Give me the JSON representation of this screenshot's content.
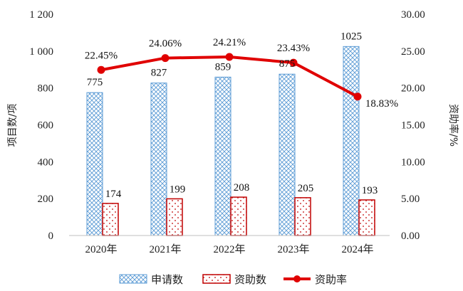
{
  "chart_data": {
    "type": "bar",
    "categories": [
      "2020年",
      "2021年",
      "2022年",
      "2023年",
      "2024年"
    ],
    "series": [
      {
        "name": "申请数",
        "kind": "bar",
        "axis": "left",
        "values": [
          775,
          827,
          859,
          875,
          1025
        ],
        "labels": [
          "775",
          "827",
          "859",
          "875",
          "1025"
        ],
        "color": "#5b9bd5"
      },
      {
        "name": "资助数",
        "kind": "bar",
        "axis": "left",
        "values": [
          174,
          199,
          208,
          205,
          193
        ],
        "labels": [
          "174",
          "199",
          "208",
          "205",
          "193"
        ],
        "color": "#c00000"
      },
      {
        "name": "资助率",
        "kind": "line",
        "axis": "right",
        "values": [
          22.45,
          24.06,
          24.21,
          23.43,
          18.83
        ],
        "labels": [
          "22.45%",
          "24.06%",
          "24.21%",
          "23.43%",
          "18.83%"
        ],
        "color": "#e00000"
      }
    ],
    "ylabel": "项目数/项",
    "y2label": "资助率/%",
    "ylim": [
      0,
      1200
    ],
    "y2lim": [
      0,
      30
    ],
    "yticks": [
      "0",
      "200",
      "400",
      "600",
      "800",
      "1 000",
      "1 200"
    ],
    "y2ticks": [
      "0.00",
      "5.00",
      "10.00",
      "15.00",
      "20.00",
      "25.00",
      "30.00"
    ],
    "legend_position": "bottom",
    "grid": false
  }
}
